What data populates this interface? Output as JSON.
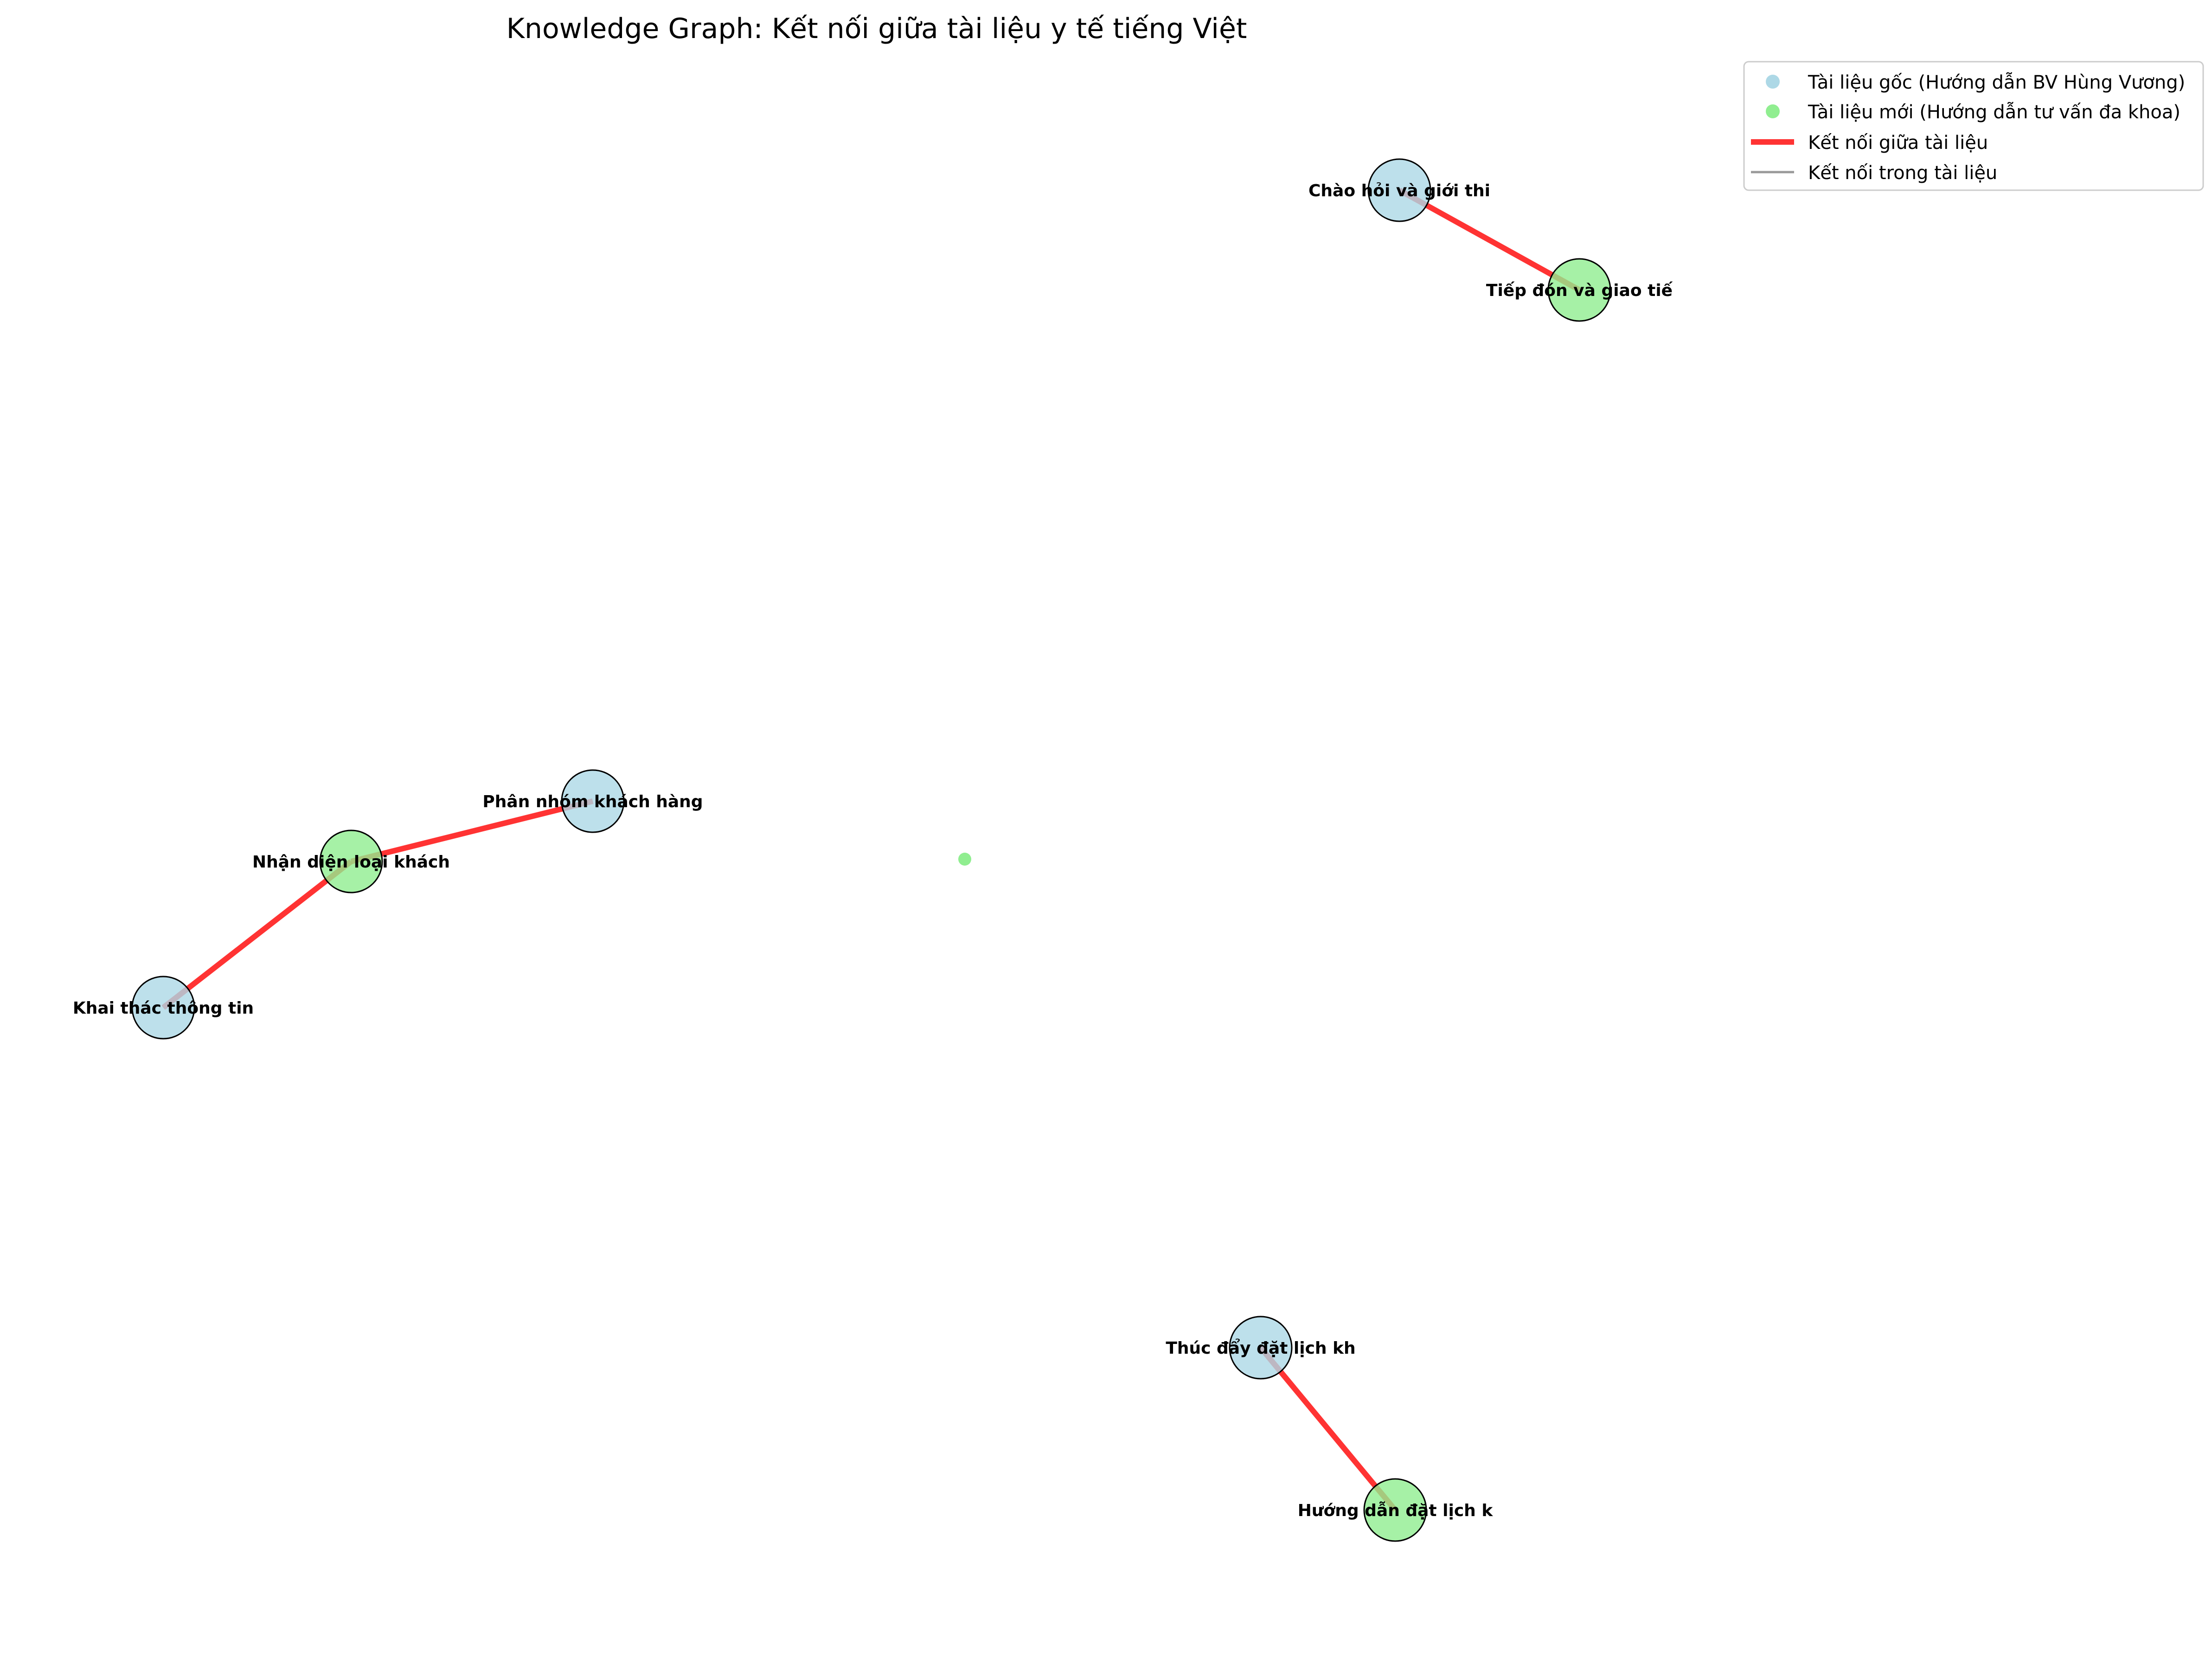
{
  "title": "Knowledge Graph: Kết nối giữa tài liệu y tế tiếng Việt",
  "colors": {
    "original": "#add8e6",
    "new": "#90ee90",
    "cross_edge": "#ff0000",
    "intra_edge": "#808080",
    "node_stroke": "#000000"
  },
  "legend": {
    "items": [
      {
        "key": "original",
        "kind": "marker",
        "label": "Tài liệu gốc (Hướng dẫn BV Hùng Vương)"
      },
      {
        "key": "new",
        "kind": "marker",
        "label": "Tài liệu mới (Hướng dẫn tư vấn đa khoa)"
      },
      {
        "key": "cross_edge",
        "kind": "thick-line",
        "label": "Kết nối giữa tài liệu"
      },
      {
        "key": "intra_edge",
        "kind": "thin-line",
        "label": "Kết nối trong tài liệu"
      }
    ]
  },
  "graph": {
    "nodes": [
      {
        "id": "chao-hoi",
        "label": "Chào hỏi và giới thi",
        "group": "original"
      },
      {
        "id": "tiep-don",
        "label": "Tiếp đón và giao tiế",
        "group": "new"
      },
      {
        "id": "phan-nhom",
        "label": "Phân nhóm khách hàng",
        "group": "original"
      },
      {
        "id": "nhan-dien",
        "label": "Nhận diện loại khách",
        "group": "new"
      },
      {
        "id": "khai-thac",
        "label": "Khai thác thông tin",
        "group": "original"
      },
      {
        "id": "isolated",
        "label": "",
        "group": "new",
        "small": true
      },
      {
        "id": "thuc-day",
        "label": "Thúc đẩy đặt lịch kh",
        "group": "original"
      },
      {
        "id": "huong-dan",
        "label": "Hướng dẫn đặt lịch k",
        "group": "new"
      }
    ],
    "edges": [
      {
        "source": "chao-hoi",
        "target": "tiep-don",
        "type": "cross"
      },
      {
        "source": "phan-nhom",
        "target": "nhan-dien",
        "type": "cross"
      },
      {
        "source": "nhan-dien",
        "target": "khai-thac",
        "type": "cross"
      },
      {
        "source": "thuc-day",
        "target": "huong-dan",
        "type": "cross"
      }
    ]
  }
}
